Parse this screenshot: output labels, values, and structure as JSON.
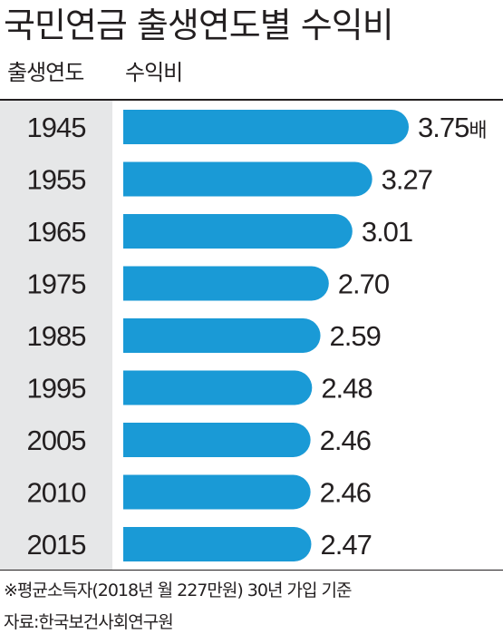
{
  "title": "국민연금 출생연도별 수익비",
  "header": {
    "year_col": "출생연도",
    "ratio_col": "수익비"
  },
  "accent_color": "#1a9ad6",
  "panel_color": "#e6e7e8",
  "chart_data": {
    "type": "bar",
    "orientation": "horizontal",
    "title": "국민연금 출생연도별 수익비",
    "categories": [
      "1945",
      "1955",
      "1965",
      "1975",
      "1985",
      "1995",
      "2005",
      "2010",
      "2015"
    ],
    "values": [
      3.75,
      3.27,
      3.01,
      2.7,
      2.59,
      2.48,
      2.46,
      2.46,
      2.47
    ],
    "value_labels": [
      "3.75",
      "3.27",
      "3.01",
      "2.70",
      "2.59",
      "2.48",
      "2.46",
      "2.46",
      "2.47"
    ],
    "unit": "배",
    "xlim": [
      0,
      4
    ]
  },
  "footnote": "※평균소득자(2018년 월 227만원) 30년 가입 기준",
  "source": "자료:한국보건사회연구원"
}
